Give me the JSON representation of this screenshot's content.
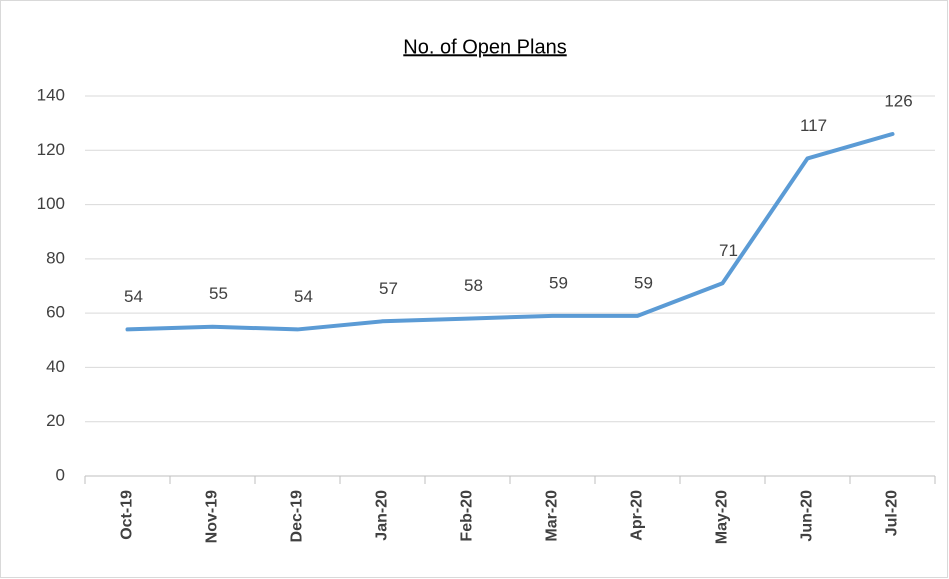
{
  "chart_data": {
    "type": "line",
    "title": "No. of Open Plans",
    "categories": [
      "Oct-19",
      "Nov-19",
      "Dec-19",
      "Jan-20",
      "Feb-20",
      "Mar-20",
      "Apr-20",
      "May-20",
      "Jun-20",
      "Jul-20"
    ],
    "values": [
      54,
      55,
      54,
      57,
      58,
      59,
      59,
      71,
      117,
      126
    ],
    "color": "#5b9bd5",
    "ylim": [
      0,
      140
    ],
    "yticks": [
      0,
      20,
      40,
      60,
      80,
      100,
      120,
      140
    ],
    "grid": true
  }
}
